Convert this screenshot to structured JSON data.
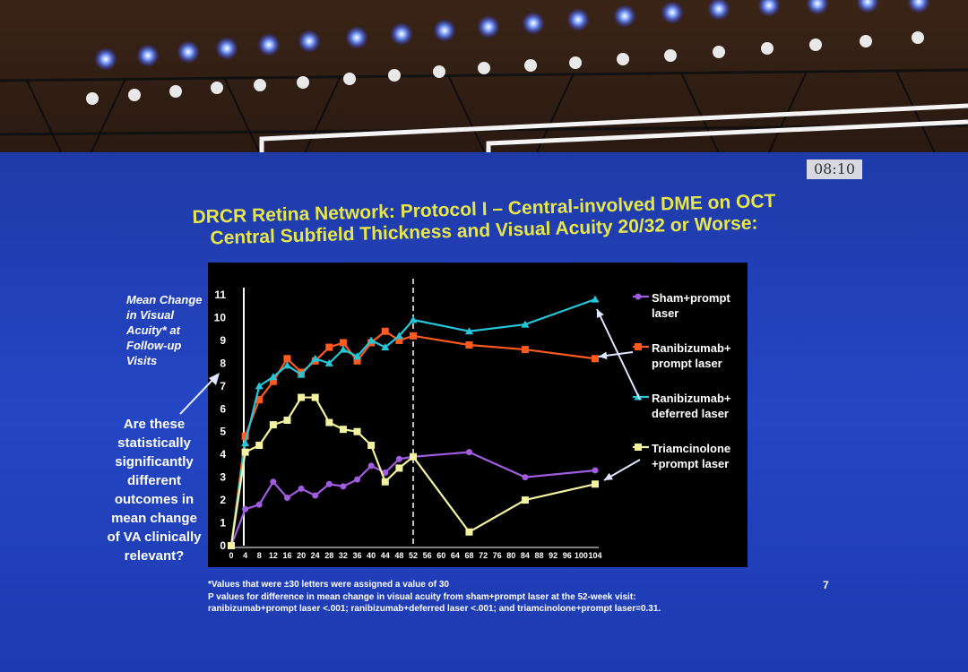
{
  "clock": "08:10",
  "title_line1": "DRCR Retina Network: Protocol I – Central-involved DME on OCT",
  "title_line2": "Central Subfield Thickness and Visual Acuity 20/32 or Worse:",
  "y_axis_label": "Mean Change in Visual Acuity* at Follow-up Visits",
  "question": "Are these statistically significantly different outcomes in mean change of VA clinically relevant?",
  "footnote1": "*Values that were ±30 letters were assigned a value of 30",
  "footnote2": "P values for difference in mean change in visual acuity from sham+prompt laser at the 52-week visit:",
  "footnote3": "ranibizumab+prompt laser <.001; ranibizumab+deferred laser <.001; and triamcinolone+prompt laser=0.31.",
  "slide_number": "7",
  "colors": {
    "title": "#e6e64a",
    "slide_bg": "#2446c4",
    "chart_bg": "#000000"
  },
  "chart_data": {
    "type": "line",
    "title": "",
    "xlabel": "",
    "ylabel": "Mean Change in Visual Acuity* at Follow-up Visits",
    "xlim": [
      0,
      104
    ],
    "ylim": [
      0,
      11
    ],
    "x_ticks": [
      "0",
      "4",
      "8",
      "12",
      "16",
      "20",
      "24",
      "28",
      "32",
      "36",
      "40",
      "44",
      "48",
      "52",
      "56",
      "60",
      "64",
      "68",
      "72",
      "76",
      "80",
      "84",
      "88",
      "92",
      "96",
      "100",
      "104"
    ],
    "y_ticks": [
      "0",
      "1",
      "2",
      "3",
      "4",
      "5",
      "6",
      "7",
      "8",
      "9",
      "10",
      "11"
    ],
    "reference_line_x": 52,
    "grid": false,
    "legend_position": "right",
    "series": [
      {
        "name": "Sham+prompt laser",
        "color": "#a15ce0",
        "marker": "circle",
        "x": [
          0,
          4,
          8,
          12,
          16,
          20,
          24,
          28,
          32,
          36,
          40,
          44,
          48,
          52,
          68,
          84,
          104
        ],
        "y": [
          0,
          1.6,
          1.8,
          2.8,
          2.1,
          2.5,
          2.2,
          2.7,
          2.6,
          2.9,
          3.5,
          3.2,
          3.8,
          3.9,
          4.1,
          3.0,
          3.3
        ]
      },
      {
        "name": "Ranibizumab+ prompt laser",
        "color": "#ff5a1f",
        "marker": "square",
        "x": [
          0,
          4,
          8,
          12,
          16,
          20,
          24,
          28,
          32,
          36,
          40,
          44,
          48,
          52,
          68,
          84,
          104
        ],
        "y": [
          0,
          4.8,
          6.4,
          7.2,
          8.2,
          7.6,
          8.1,
          8.7,
          8.9,
          8.1,
          8.9,
          9.4,
          9.0,
          9.2,
          8.8,
          8.6,
          8.2
        ]
      },
      {
        "name": "Ranibizumab+ deferred laser",
        "color": "#26c6da",
        "marker": "triangle",
        "x": [
          0,
          4,
          8,
          12,
          16,
          20,
          24,
          28,
          32,
          36,
          40,
          44,
          48,
          52,
          68,
          84,
          104
        ],
        "y": [
          0,
          4.5,
          7.0,
          7.4,
          7.9,
          7.5,
          8.2,
          8.0,
          8.6,
          8.3,
          9.0,
          8.7,
          9.2,
          9.9,
          9.4,
          9.7,
          10.8
        ]
      },
      {
        "name": "Triamcinolone +prompt laser",
        "color": "#f2f2a0",
        "marker": "square",
        "x": [
          0,
          4,
          8,
          12,
          16,
          20,
          24,
          28,
          32,
          36,
          40,
          44,
          48,
          52,
          68,
          84,
          104
        ],
        "y": [
          0,
          4.1,
          4.4,
          5.3,
          5.5,
          6.5,
          6.5,
          5.4,
          5.1,
          5.0,
          4.4,
          2.8,
          3.4,
          3.9,
          0.6,
          2.0,
          2.7
        ]
      }
    ]
  },
  "legend": [
    {
      "label": "Sham+prompt\nlaser"
    },
    {
      "label": "Ranibizumab+\nprompt laser"
    },
    {
      "label": "Ranibizumab+\ndeferred laser"
    },
    {
      "label": "Triamcinolone\n+prompt laser"
    }
  ]
}
